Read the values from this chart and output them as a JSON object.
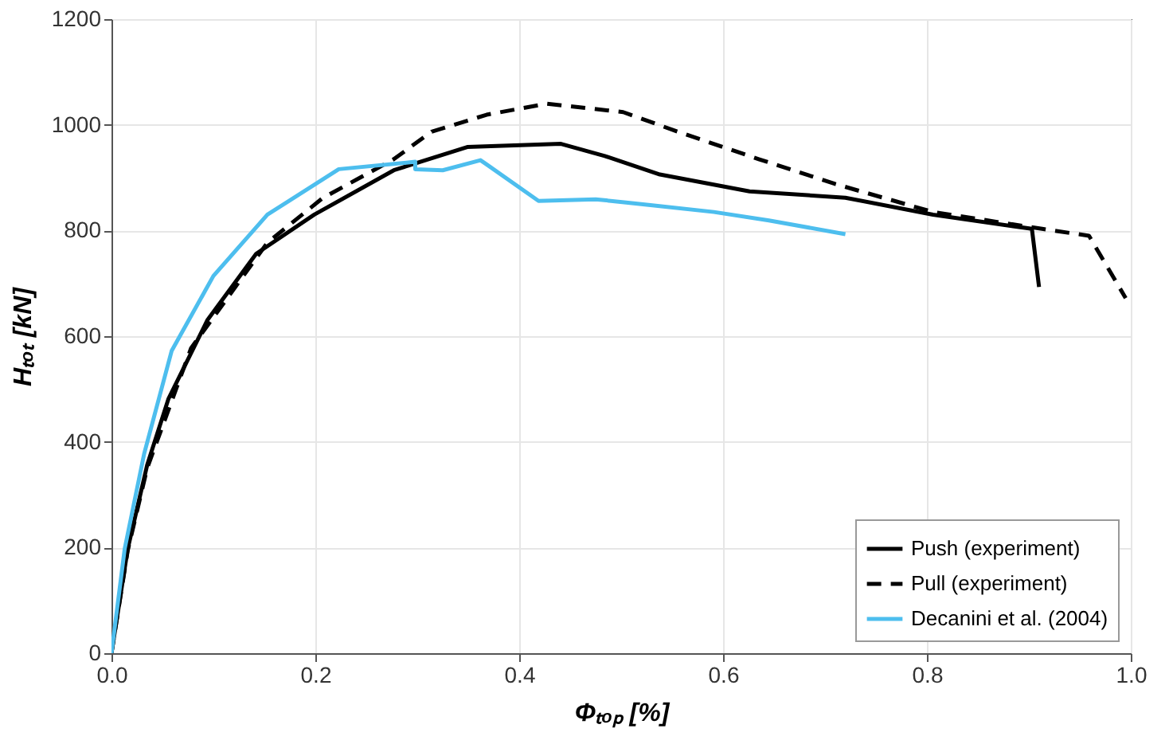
{
  "chart_data": {
    "type": "line",
    "xlabel": "Φₜₒₚ [%]",
    "ylabel": "Hₜₒₜ [kN]",
    "xlim": [
      0,
      1
    ],
    "xticks": [
      {
        "value": 0,
        "label": "0.0"
      },
      0.2,
      0.4,
      0.6,
      0.8,
      {
        "value": 1,
        "label": "1.0"
      }
    ],
    "ylim": [
      0,
      1200
    ],
    "yticks": [
      0,
      200,
      400,
      600,
      800,
      1000,
      1200
    ],
    "grid": true,
    "legend": "bottom right",
    "marker": "none",
    "series": [
      {
        "name": "Push (experiment)",
        "color": "#000000",
        "line_style": "solid",
        "x": [
          0,
          0.016,
          0.035,
          0.056,
          0.094,
          0.142,
          0.199,
          0.277,
          0.349,
          0.441,
          0.484,
          0.538,
          0.626,
          0.72,
          0.806,
          0.903,
          0.91
        ],
        "values": [
          0,
          198,
          356,
          482,
          630,
          756,
          830,
          914,
          958,
          964,
          941,
          906,
          874,
          862,
          830,
          803,
          693
        ]
      },
      {
        "name": "Pull (experiment)",
        "color": "#000000",
        "line_style": "dashed",
        "x": [
          0,
          0.016,
          0.035,
          0.078,
          0.153,
          0.207,
          0.277,
          0.314,
          0.368,
          0.427,
          0.502,
          0.554,
          0.635,
          0.71,
          0.806,
          0.913,
          0.959,
          0.995
        ],
        "values": [
          0,
          195,
          350,
          577,
          777,
          861,
          935,
          987,
          1019,
          1040,
          1024,
          988,
          935,
          888,
          835,
          803,
          790,
          672
        ]
      },
      {
        "name": "Decanini et al. (2004)",
        "color": "#4dbeee",
        "line_style": "solid",
        "x": [
          0,
          0.013,
          0.032,
          0.059,
          0.1,
          0.153,
          0.223,
          0.298,
          0.298,
          0.325,
          0.362,
          0.368,
          0.419,
          0.475,
          0.505,
          0.591,
          0.645,
          0.72
        ],
        "values": [
          0,
          198,
          377,
          572,
          714,
          830,
          916,
          930,
          916,
          914,
          933,
          925,
          856,
          859,
          853,
          835,
          819,
          793
        ]
      }
    ]
  }
}
